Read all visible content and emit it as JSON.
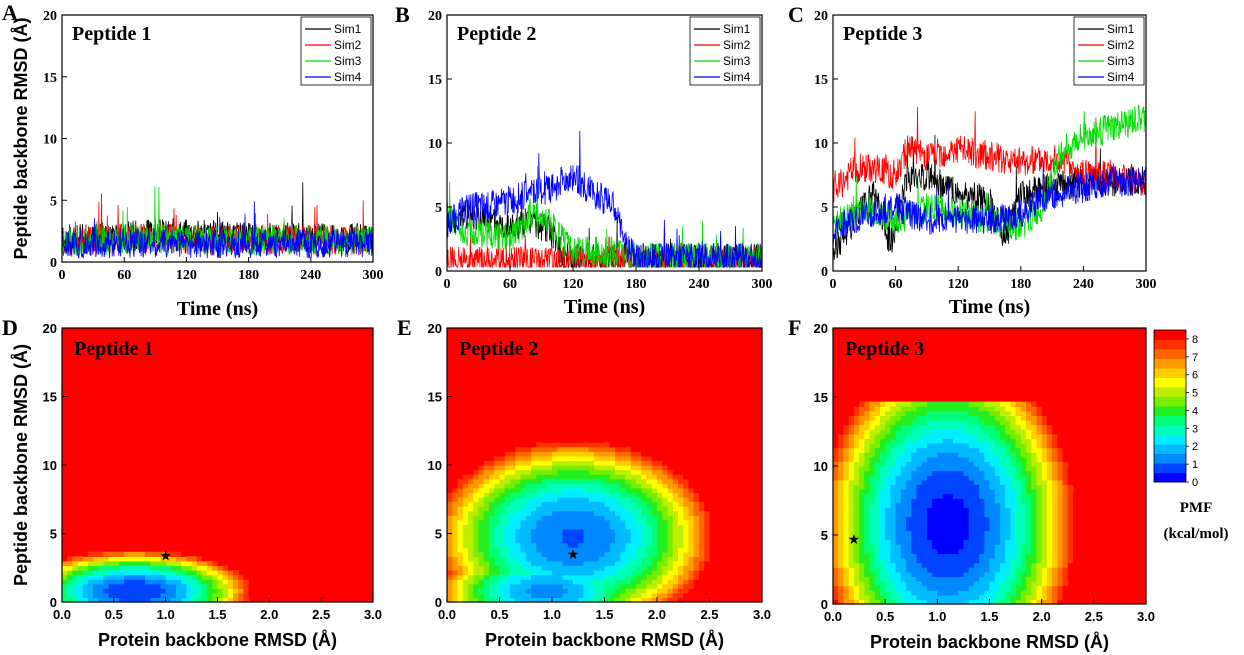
{
  "chart_data": [
    {
      "panel": "A",
      "type": "line",
      "title": "Peptide 1",
      "xlabel": "Time (ns)",
      "ylabel": "Peptide backbone RMSD (Å)",
      "xlim": [
        0,
        300
      ],
      "ylim": [
        0,
        20
      ],
      "xticks": [
        "0",
        "60",
        "120",
        "180",
        "240",
        "300"
      ],
      "yticks": [
        "0",
        "5",
        "10",
        "15",
        "20"
      ],
      "legend_position": "top-right",
      "series": [
        {
          "name": "Sim1",
          "color": "#000000",
          "x": [
            0,
            30,
            60,
            90,
            120,
            150,
            180,
            210,
            240,
            270,
            300
          ],
          "y": [
            1.8,
            2.0,
            2.2,
            2.3,
            2.4,
            2.2,
            2.0,
            2.1,
            2.0,
            1.9,
            2.0
          ]
        },
        {
          "name": "Sim2",
          "color": "#ff0000",
          "x": [
            0,
            30,
            60,
            90,
            120,
            150,
            180,
            210,
            240,
            270,
            300
          ],
          "y": [
            1.5,
            1.8,
            1.9,
            2.0,
            1.8,
            1.7,
            1.9,
            1.8,
            1.7,
            1.8,
            1.7
          ]
        },
        {
          "name": "Sim3",
          "color": "#00dd00",
          "x": [
            0,
            30,
            60,
            90,
            120,
            150,
            180,
            210,
            240,
            270,
            300
          ],
          "y": [
            1.6,
            1.7,
            1.8,
            1.9,
            1.8,
            1.8,
            1.7,
            1.9,
            1.8,
            1.8,
            1.7
          ]
        },
        {
          "name": "Sim4",
          "color": "#0000ff",
          "x": [
            0,
            30,
            60,
            90,
            120,
            150,
            180,
            210,
            240,
            270,
            300
          ],
          "y": [
            1.4,
            1.5,
            1.5,
            1.6,
            1.5,
            1.5,
            1.5,
            1.6,
            1.5,
            1.5,
            1.6
          ]
        }
      ]
    },
    {
      "panel": "B",
      "type": "line",
      "title": "Peptide 2",
      "xlabel": "Time (ns)",
      "ylabel": "",
      "xlim": [
        0,
        300
      ],
      "ylim": [
        0,
        20
      ],
      "xticks": [
        "0",
        "60",
        "120",
        "180",
        "240",
        "300"
      ],
      "yticks": [
        "0",
        "5",
        "10",
        "15",
        "20"
      ],
      "legend_position": "top-right",
      "series": [
        {
          "name": "Sim1",
          "color": "#000000",
          "x": [
            0,
            20,
            40,
            60,
            80,
            100,
            110,
            120,
            150,
            180,
            210,
            240,
            270,
            300
          ],
          "y": [
            4.0,
            4.5,
            4.0,
            3.5,
            4.0,
            3.0,
            1.2,
            1.0,
            1.0,
            1.0,
            1.0,
            1.0,
            1.0,
            1.0
          ]
        },
        {
          "name": "Sim2",
          "color": "#ff0000",
          "x": [
            0,
            30,
            60,
            90,
            120,
            150,
            180,
            210,
            240,
            270,
            300
          ],
          "y": [
            0.8,
            0.7,
            0.7,
            0.7,
            0.8,
            0.8,
            0.8,
            0.8,
            0.8,
            0.8,
            0.8
          ]
        },
        {
          "name": "Sim3",
          "color": "#00dd00",
          "x": [
            0,
            20,
            40,
            60,
            80,
            100,
            120,
            140,
            160,
            180,
            210,
            240,
            270,
            300
          ],
          "y": [
            4.5,
            3.0,
            3.0,
            2.5,
            4.5,
            3.5,
            1.5,
            1.5,
            1.5,
            1.0,
            1.0,
            1.0,
            1.0,
            1.0
          ]
        },
        {
          "name": "Sim4",
          "color": "#0000ff",
          "x": [
            0,
            20,
            40,
            60,
            80,
            100,
            120,
            140,
            160,
            170,
            180,
            210,
            240,
            270,
            300
          ],
          "y": [
            3.5,
            5.0,
            5.0,
            5.5,
            6.0,
            6.5,
            7.5,
            6.0,
            5.0,
            2.0,
            1.0,
            1.0,
            1.0,
            1.0,
            1.0
          ]
        }
      ]
    },
    {
      "panel": "C",
      "type": "line",
      "title": "Peptide 3",
      "xlabel": "Time (ns)",
      "ylabel": "",
      "xlim": [
        0,
        300
      ],
      "ylim": [
        0,
        20
      ],
      "xticks": [
        "0",
        "60",
        "120",
        "180",
        "240",
        "300"
      ],
      "yticks": [
        "0",
        "5",
        "10",
        "15",
        "20"
      ],
      "legend_position": "top-right",
      "series": [
        {
          "name": "Sim1",
          "color": "#000000",
          "x": [
            0,
            20,
            40,
            55,
            70,
            90,
            120,
            150,
            165,
            180,
            210,
            240,
            270,
            300
          ],
          "y": [
            1.5,
            4.0,
            6.0,
            2.0,
            7.0,
            7.5,
            6.0,
            5.5,
            2.5,
            6.0,
            6.5,
            7.0,
            7.0,
            7.0
          ]
        },
        {
          "name": "Sim2",
          "color": "#ff0000",
          "x": [
            0,
            20,
            40,
            60,
            70,
            90,
            120,
            150,
            180,
            210,
            240,
            270,
            300
          ],
          "y": [
            6.0,
            8.0,
            8.0,
            7.5,
            9.5,
            9.0,
            9.5,
            9.0,
            8.5,
            9.0,
            7.5,
            7.5,
            7.0
          ]
        },
        {
          "name": "Sim3",
          "color": "#00dd00",
          "x": [
            0,
            30,
            60,
            90,
            120,
            150,
            180,
            200,
            220,
            240,
            260,
            280,
            300
          ],
          "y": [
            3.5,
            5.0,
            4.0,
            5.0,
            4.5,
            4.0,
            3.5,
            5.0,
            9.5,
            10.5,
            11.0,
            11.5,
            12.0
          ]
        },
        {
          "name": "Sim4",
          "color": "#0000ff",
          "x": [
            0,
            30,
            60,
            90,
            120,
            150,
            180,
            210,
            240,
            270,
            300
          ],
          "y": [
            3.0,
            4.5,
            5.0,
            4.0,
            4.0,
            4.0,
            4.5,
            6.0,
            6.5,
            7.0,
            7.0
          ]
        }
      ]
    },
    {
      "panel": "D",
      "type": "heatmap",
      "title": "Peptide 1",
      "xlabel": "Protein backbone RMSD (Å)",
      "ylabel": "Peptide backbone RMSD (Å)",
      "xlim": [
        0,
        3
      ],
      "ylim": [
        0,
        20
      ],
      "xticks": [
        "0.0",
        "0.5",
        "1.0",
        "1.5",
        "2.0",
        "2.5",
        "3.0"
      ],
      "yticks": [
        "0",
        "5",
        "10",
        "15",
        "20"
      ],
      "minima": [
        {
          "x": 0.7,
          "y": 0.8,
          "pmf": 0
        }
      ],
      "marker": {
        "x": 1.0,
        "y": 3.4
      }
    },
    {
      "panel": "E",
      "type": "heatmap",
      "title": "Peptide 2",
      "xlabel": "Protein backbone RMSD (Å)",
      "ylabel": "",
      "xlim": [
        0,
        3
      ],
      "ylim": [
        0,
        20
      ],
      "xticks": [
        "0.0",
        "0.5",
        "1.0",
        "1.5",
        "2.0",
        "2.5",
        "3.0"
      ],
      "yticks": [
        "0",
        "5",
        "10",
        "15",
        "20"
      ],
      "minima": [
        {
          "x": 1.2,
          "y": 4.8,
          "pmf": 1
        },
        {
          "x": 0.9,
          "y": 0.8,
          "pmf": 1
        }
      ],
      "marker": {
        "x": 1.2,
        "y": 3.5
      }
    },
    {
      "panel": "F",
      "type": "heatmap",
      "title": "Peptide 3",
      "xlabel": "Protein backbone RMSD (Å)",
      "ylabel": "",
      "xlim": [
        0,
        3
      ],
      "ylim": [
        0,
        20
      ],
      "xticks": [
        "0.0",
        "0.5",
        "1.0",
        "1.5",
        "2.0",
        "2.5",
        "3.0"
      ],
      "yticks": [
        "0",
        "5",
        "10",
        "15",
        "20"
      ],
      "minima": [
        {
          "x": 1.1,
          "y": 5.5,
          "pmf": 0
        }
      ],
      "marker": {
        "x": 0.2,
        "y": 4.7
      }
    }
  ],
  "colorbar": {
    "title_line1": "PMF",
    "title_line2": "(kcal/mol)",
    "ticks": [
      "8",
      "7",
      "6",
      "5",
      "4",
      "3",
      "2",
      "1",
      "0"
    ],
    "range": [
      0,
      8.5
    ],
    "colors": [
      "#0000ff",
      "#0044ff",
      "#0088ff",
      "#00bbff",
      "#00eeff",
      "#00ffbb",
      "#00ff77",
      "#22ee22",
      "#77ee00",
      "#bbee00",
      "#ffff00",
      "#ffcc00",
      "#ff9900",
      "#ff6600",
      "#ff3300",
      "#ff0000"
    ]
  },
  "panel_letters": [
    "A",
    "B",
    "C",
    "D",
    "E",
    "F"
  ]
}
